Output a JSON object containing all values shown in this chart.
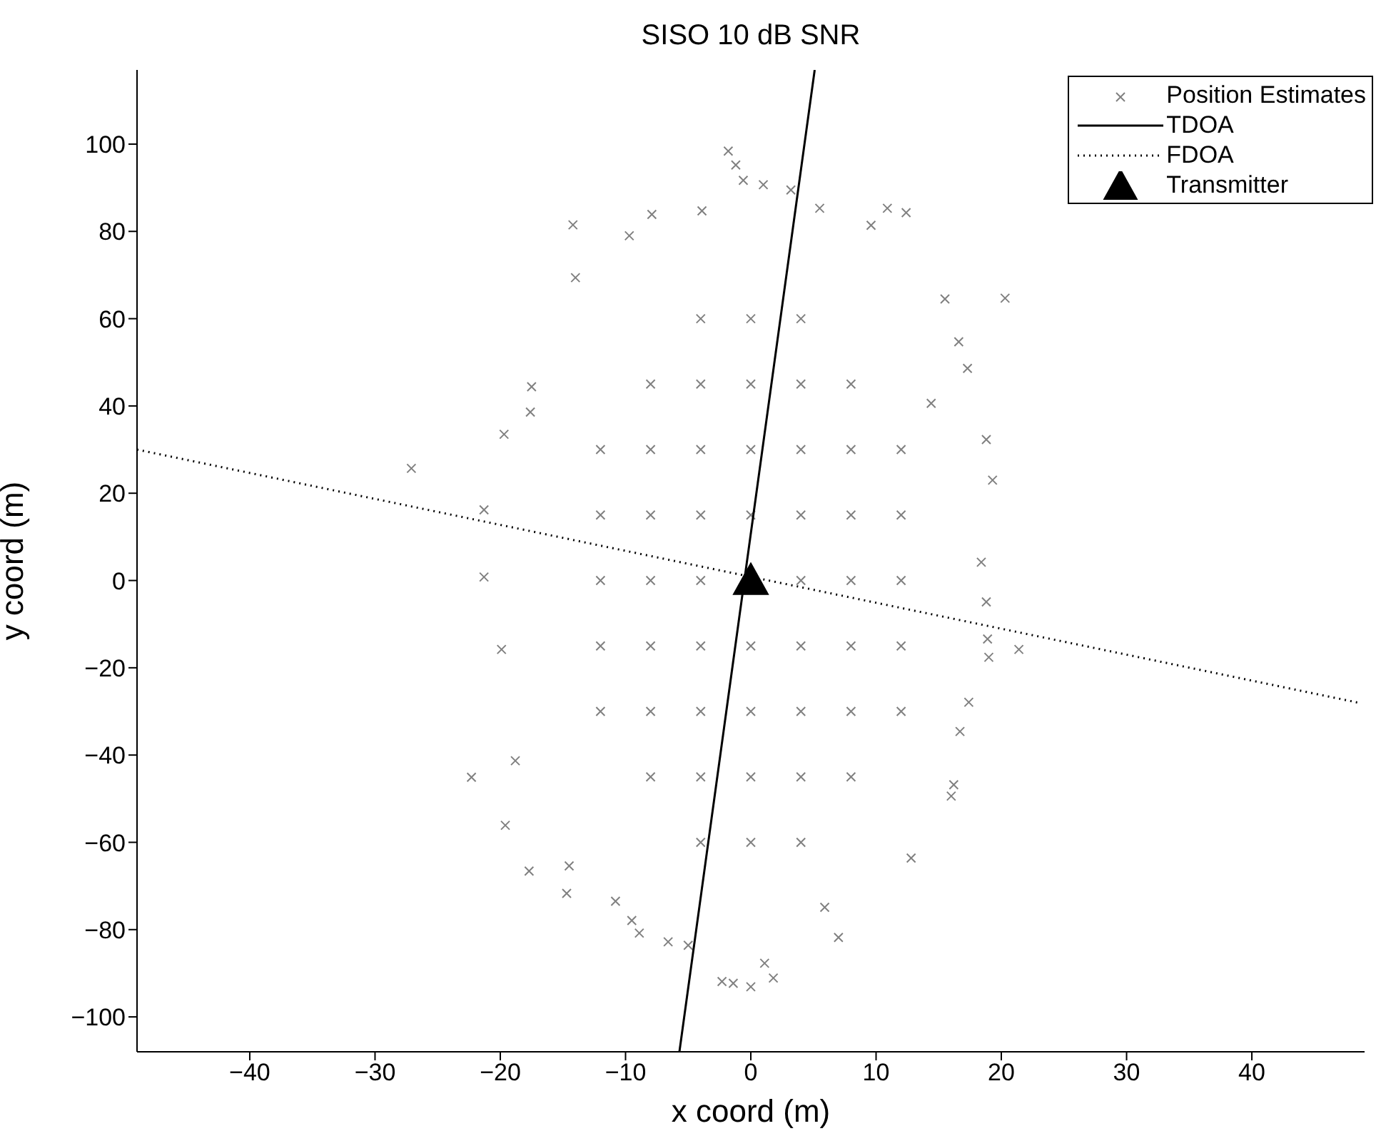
{
  "chart_data": {
    "type": "scatter",
    "title": "SISO 10 dB SNR",
    "xlabel": "x coord (m)",
    "ylabel": "y coord (m)",
    "xlim": [
      -49,
      49
    ],
    "ylim": [
      -108,
      117
    ],
    "xticks": [
      -40,
      -30,
      -20,
      -10,
      0,
      10,
      20,
      30,
      40
    ],
    "yticks": [
      -100,
      -80,
      -60,
      -40,
      -20,
      0,
      20,
      40,
      60,
      80,
      100
    ],
    "grid": false,
    "legend": "top right",
    "series": [
      {
        "name": "Position Estimates",
        "marker": "cross",
        "color": "#808080",
        "x": [
          -1.8,
          -1.2,
          -0.6,
          1.0,
          3.2,
          5.5,
          10.9,
          12.4,
          -7.9,
          -3.9,
          -14.2,
          20.3,
          15.5,
          -14.0,
          -17.5,
          -19.7,
          -27.1,
          -21.3,
          -21.3,
          18.8,
          19.3,
          16.6,
          17.3,
          14.4,
          -9.7,
          9.6,
          -17.6,
          18.4,
          -22.3,
          -19.6,
          -17.7,
          -19.9,
          21.4,
          19.0,
          18.8,
          16.0,
          16.2,
          12.8,
          7.0,
          5.9,
          1.1,
          1.8,
          0,
          -2.3,
          -1.4,
          -5.0,
          -8.9,
          -9.5,
          -6.6,
          -14.7,
          -14.5,
          -10.8,
          16.7,
          -18.8,
          17.4,
          18.9,
          -12,
          -8,
          -4,
          4,
          8,
          12,
          -12,
          -8,
          -4,
          0,
          4,
          8,
          12,
          -12,
          -8,
          -4,
          0,
          4,
          8,
          12,
          -12,
          -8,
          -4,
          0,
          4,
          8,
          12,
          -12,
          -8,
          -4,
          0,
          4,
          8,
          12,
          -8,
          -4,
          0,
          4,
          8,
          -8,
          -4,
          0,
          4,
          8,
          -4,
          0,
          4,
          -4,
          0,
          4
        ],
        "values": [
          98.4,
          95.2,
          91.7,
          90.7,
          89.5,
          85.3,
          85.3,
          84.3,
          83.9,
          84.7,
          81.5,
          64.7,
          64.5,
          69.4,
          44.4,
          33.5,
          25.7,
          16.2,
          0.8,
          32.3,
          23.0,
          54.7,
          48.6,
          40.6,
          79.0,
          81.4,
          38.6,
          4.2,
          -45.1,
          -56.1,
          -66.6,
          -15.8,
          -15.8,
          -17.6,
          -4.9,
          -49.4,
          -46.8,
          -63.6,
          -81.8,
          -74.9,
          -87.7,
          -91.1,
          -93.1,
          -91.9,
          -92.3,
          -83.6,
          -80.8,
          -77.9,
          -82.8,
          -71.7,
          -65.4,
          -73.5,
          -34.6,
          -41.3,
          -27.9,
          -13.4,
          0,
          0,
          0,
          0,
          0,
          0,
          15,
          15,
          15,
          15,
          15,
          15,
          15,
          -15,
          -15,
          -15,
          -15,
          -15,
          -15,
          -15,
          30,
          30,
          30,
          30,
          30,
          30,
          30,
          -30,
          -30,
          -30,
          -30,
          -30,
          -30,
          -30,
          45,
          45,
          45,
          45,
          45,
          -45,
          -45,
          -45,
          -45,
          -45,
          60,
          60,
          60,
          -60,
          -60,
          -60
        ]
      },
      {
        "name": "TDOA",
        "type": "line",
        "marker": "none",
        "line_style": "solid",
        "color": "#000000",
        "x": [
          -5.7,
          5.1
        ],
        "values": [
          -108,
          117
        ]
      },
      {
        "name": "FDOA",
        "type": "line",
        "marker": "none",
        "line_style": "dotted",
        "color": "#000000",
        "x": [
          -49,
          48.5
        ],
        "values": [
          30,
          -28
        ]
      },
      {
        "name": "Transmitter",
        "marker": "triangle",
        "color": "#000000",
        "x": [
          0
        ],
        "values": [
          0
        ]
      }
    ]
  }
}
